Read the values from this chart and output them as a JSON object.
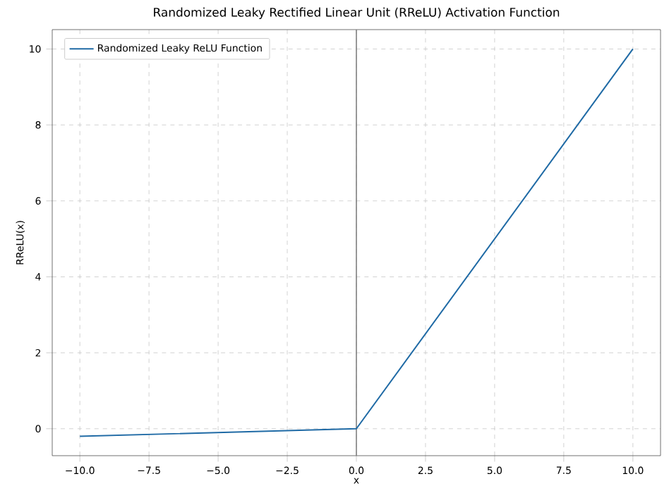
{
  "chart_data": {
    "type": "line",
    "title": "Randomized Leaky Rectified Linear Unit (RReLU) Activation Function",
    "xlabel": "x",
    "ylabel": "RReLU(x)",
    "x": [
      -10,
      0,
      10
    ],
    "series": [
      {
        "name": "Randomized Leaky ReLU Function",
        "color": "#1f6aa5",
        "values": [
          -0.2,
          0,
          10
        ]
      }
    ],
    "xlim": [
      -11,
      11
    ],
    "ylim": [
      -0.71,
      10.51
    ],
    "xticks": [
      {
        "value": -10,
        "label": "−10.0"
      },
      {
        "value": -7.5,
        "label": "−7.5"
      },
      {
        "value": -5,
        "label": "−5.0"
      },
      {
        "value": -2.5,
        "label": "−2.5"
      },
      {
        "value": 0,
        "label": "0.0"
      },
      {
        "value": 2.5,
        "label": "2.5"
      },
      {
        "value": 5,
        "label": "5.0"
      },
      {
        "value": 7.5,
        "label": "7.5"
      },
      {
        "value": 10,
        "label": "10.0"
      }
    ],
    "yticks": [
      0,
      2,
      4,
      6,
      8,
      10
    ],
    "ref_lines": [
      {
        "axis": "x",
        "value": 0,
        "color": "#808080"
      }
    ],
    "grid": true,
    "legend": "top left",
    "marker": "none",
    "line_style": "solid"
  }
}
